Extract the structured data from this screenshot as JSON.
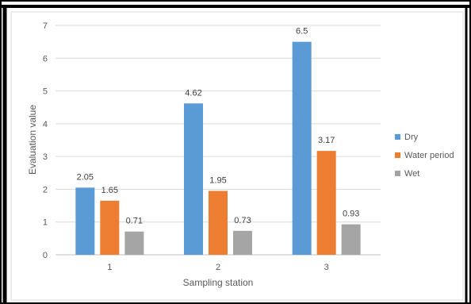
{
  "chart_data": {
    "type": "bar",
    "categories": [
      "1",
      "2",
      "3"
    ],
    "series": [
      {
        "name": "Dry",
        "values": [
          2.05,
          4.62,
          6.5
        ],
        "color": "#5B9BD5"
      },
      {
        "name": "Water period",
        "values": [
          1.65,
          1.95,
          3.17
        ],
        "color": "#ED7D31"
      },
      {
        "name": "Wet",
        "values": [
          0.71,
          0.73,
          0.93
        ],
        "color": "#A5A5A5"
      }
    ],
    "data_labels": [
      [
        "2.05",
        "4.62",
        "6.5"
      ],
      [
        "1.65",
        "1.95",
        "3.17"
      ],
      [
        "0.71",
        "0.73",
        "0.93"
      ]
    ],
    "title": "",
    "xlabel": "Sampling station",
    "ylabel": "Evaluation  value",
    "ylim": [
      0,
      7
    ],
    "yticks": [
      "0",
      "1",
      "2",
      "3",
      "4",
      "5",
      "6",
      "7"
    ],
    "grid": true,
    "legend_position": "right"
  }
}
